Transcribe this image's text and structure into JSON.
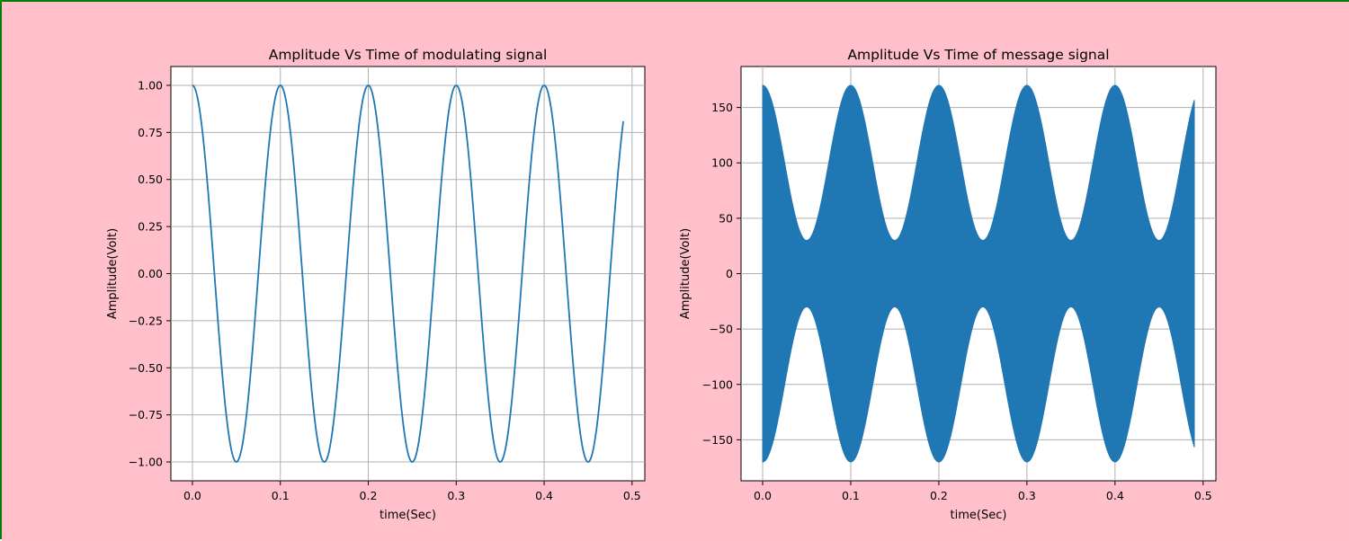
{
  "figure": {
    "background": "#ffc0cb",
    "border_color": "#008000",
    "line_color": "#1f77b4"
  },
  "chart_data": [
    {
      "type": "line",
      "title": "Amplitude Vs Time of modulating signal",
      "xlabel": "time(Sec)",
      "ylabel": "Amplitude(Volt)",
      "xlim": [
        -0.0245,
        0.5145
      ],
      "ylim": [
        -1.1,
        1.1
      ],
      "xticks": [
        0.0,
        0.1,
        0.2,
        0.3,
        0.4,
        0.5
      ],
      "xtick_labels": [
        "0.0",
        "0.1",
        "0.2",
        "0.3",
        "0.4",
        "0.5"
      ],
      "yticks": [
        -1.0,
        -0.75,
        -0.5,
        -0.25,
        0.0,
        0.25,
        0.5,
        0.75,
        1.0
      ],
      "ytick_labels": [
        "−1.00",
        "−0.75",
        "−0.50",
        "−0.25",
        "0.00",
        "0.25",
        "0.50",
        "0.75",
        "1.00"
      ],
      "grid": true,
      "series": [
        {
          "function": "cos",
          "amplitude": 1,
          "frequency_hz": 10,
          "t_start": 0.0,
          "t_end": 0.49,
          "samples": 490
        }
      ]
    },
    {
      "type": "line",
      "title": "Amplitude Vs Time of message signal",
      "xlabel": "time(Sec)",
      "ylabel": "Amplitude(Volt)",
      "xlim": [
        -0.0245,
        0.5145
      ],
      "ylim": [
        -187,
        187
      ],
      "xticks": [
        0.0,
        0.1,
        0.2,
        0.3,
        0.4,
        0.5
      ],
      "xtick_labels": [
        "0.0",
        "0.1",
        "0.2",
        "0.3",
        "0.4",
        "0.5"
      ],
      "yticks": [
        -150,
        -100,
        -50,
        0,
        50,
        100,
        150
      ],
      "ytick_labels": [
        "−150",
        "−100",
        "−50",
        "0",
        "50",
        "100",
        "150"
      ],
      "grid": true,
      "series": [
        {
          "function": "am_envelope_filled",
          "carrier_amplitude": 100,
          "modulation_amplitude": 70,
          "frequency_hz": 10,
          "envelope_max": 170,
          "envelope_min": 30,
          "t_start": 0.0,
          "t_end": 0.49,
          "samples": 490
        }
      ]
    }
  ]
}
